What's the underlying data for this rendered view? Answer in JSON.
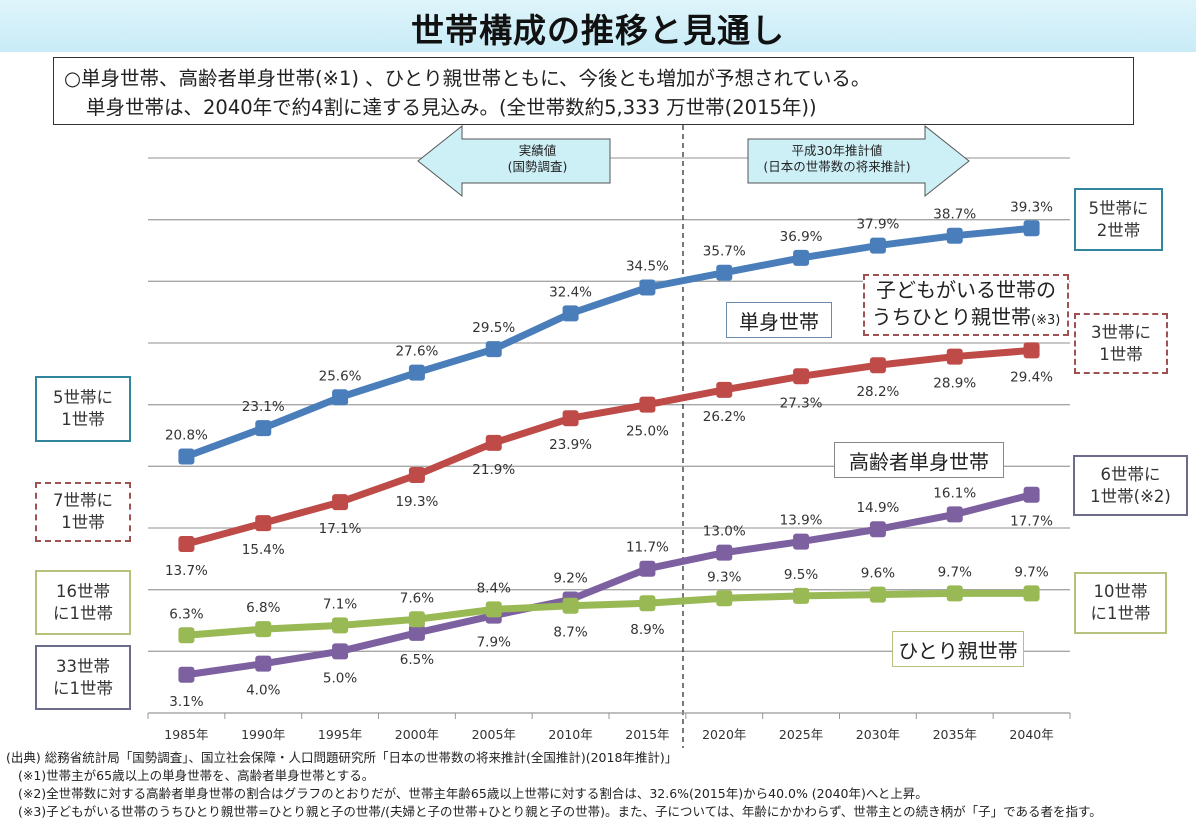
{
  "title": "世帯構成の推移と見通し",
  "summary": {
    "line1": "○単身世帯、高齢者単身世帯(※1) 、ひとり親世帯ともに、今後とも増加が予想されている。",
    "line2": "単身世帯は、2040年で約4割に達する見込み。(全世帯数約5,333 万世帯(2015年))"
  },
  "period_arrows": {
    "actual": {
      "line1": "実績値",
      "line2": "(国勢調査)"
    },
    "projection": {
      "line1": "平成30年推計値",
      "line2": "(日本の世帯数の将来推計)"
    }
  },
  "series_labels": {
    "single": "単身世帯",
    "single_parent_of_child": [
      "子どもがいる世帯の",
      "うちひとり親世帯",
      "(※3)"
    ],
    "elderly_single": "高齢者単身世帯",
    "single_parent": "ひとり親世帯"
  },
  "ratio_boxes": {
    "left": [
      {
        "line1": "5世帯に",
        "line2": "1世帯"
      },
      {
        "line1": "7世帯に",
        "line2": "1世帯"
      },
      {
        "line1": "16世帯",
        "line2": "に1世帯"
      },
      {
        "line1": "33世帯",
        "line2": "に1世帯"
      }
    ],
    "right": [
      {
        "line1": "5世帯に",
        "line2": "2世帯"
      },
      {
        "line1": "3世帯に",
        "line2": "1世帯"
      },
      {
        "line1": "6世帯に",
        "line2": "1世帯(※2)"
      },
      {
        "line1": "10世帯",
        "line2": "に1世帯"
      }
    ]
  },
  "colors": {
    "single": "#4a7ebb",
    "single_parent_of_child": "#be4b48",
    "elderly_single": "#7d60a0",
    "single_parent": "#98b954",
    "grid": "#a6a6a6",
    "arrow_fill": "#ccf0f6",
    "box_blue": "#31859c",
    "box_red_dashed": "#a05252",
    "box_purple": "#6b6b8c",
    "box_green": "#b4c27c"
  },
  "footnotes": [
    "(出典) 総務省統計局「国勢調査」、国立社会保障・人口問題研究所「日本の世帯数の将来推計(全国推計)(2018年推計)」",
    "(※1)世帯主が65歳以上の単身世帯を、高齢者単身世帯とする。",
    "(※2)全世帯数に対する高齢者単身世帯の割合はグラフのとおりだが、世帯主年齢65歳以上世帯に対する割合は、32.6%(2015年)から40.0% (2040年)へと上昇。",
    "(※3)子どもがいる世帯のうちひとり親世帯=ひとり親と子の世帯/(夫婦と子の世帯+ひとり親と子の世帯)。また、子については、年齢にかかわらず、世帯主との続き柄が「子」である者を指す。"
  ],
  "chart_data": {
    "type": "line",
    "title": "世帯構成の推移と見通し",
    "xlabel": "",
    "ylabel": "",
    "categories": [
      "1985年",
      "1990年",
      "1995年",
      "2000年",
      "2005年",
      "2010年",
      "2015年",
      "2020年",
      "2025年",
      "2030年",
      "2035年",
      "2040年"
    ],
    "ylim": [
      0,
      45
    ],
    "grid": true,
    "grid_step": 5,
    "projection_divider_after": "2015年",
    "series": [
      {
        "key": "single",
        "name": "単身世帯",
        "values": [
          20.8,
          23.1,
          25.6,
          27.6,
          29.5,
          32.4,
          34.5,
          35.7,
          36.9,
          37.9,
          38.7,
          39.3
        ],
        "labels": [
          "20.8%",
          "23.1%",
          "25.6%",
          "27.6%",
          "29.5%",
          "32.4%",
          "34.5%",
          "35.7%",
          "36.9%",
          "37.9%",
          "38.7%",
          "39.3%"
        ],
        "label_pos": [
          "above",
          "above",
          "above",
          "above",
          "above",
          "above",
          "above",
          "above",
          "above",
          "above",
          "above",
          "above"
        ]
      },
      {
        "key": "single_parent_of_child",
        "name": "子どもがいる世帯のうちひとり親世帯",
        "values": [
          13.7,
          15.4,
          17.1,
          19.3,
          21.9,
          23.9,
          25.0,
          26.2,
          27.3,
          28.2,
          28.9,
          29.4
        ],
        "labels": [
          "13.7%",
          "15.4%",
          "17.1%",
          "19.3%",
          "21.9%",
          "23.9%",
          "25.0%",
          "26.2%",
          "27.3%",
          "28.2%",
          "28.9%",
          "29.4%"
        ],
        "label_pos": [
          "below",
          "below",
          "below",
          "below",
          "below",
          "below",
          "below",
          "below",
          "below",
          "below",
          "below",
          "below"
        ]
      },
      {
        "key": "elderly_single",
        "name": "高齢者単身世帯",
        "values": [
          3.1,
          4.0,
          5.0,
          6.5,
          7.9,
          9.2,
          11.7,
          13.0,
          13.9,
          14.9,
          16.1,
          17.7
        ],
        "labels": [
          "3.1%",
          "4.0%",
          "5.0%",
          "6.5%",
          "7.9%",
          "9.2%",
          "11.7%",
          "13.0%",
          "13.9%",
          "14.9%",
          "16.1%",
          "17.7%"
        ],
        "label_pos": [
          "below",
          "below",
          "below",
          "below",
          "below",
          "above",
          "above",
          "above",
          "above",
          "above",
          "above",
          "below"
        ]
      },
      {
        "key": "single_parent",
        "name": "ひとり親世帯",
        "values": [
          6.3,
          6.8,
          7.1,
          7.6,
          8.4,
          8.7,
          8.9,
          9.3,
          9.5,
          9.6,
          9.7,
          9.7
        ],
        "labels": [
          "6.3%",
          "6.8%",
          "7.1%",
          "7.6%",
          "8.4%",
          "8.7%",
          "8.9%",
          "9.3%",
          "9.5%",
          "9.6%",
          "9.7%",
          "9.7%"
        ],
        "label_pos": [
          "above",
          "above",
          "above",
          "above",
          "above",
          "below",
          "below",
          "above",
          "above",
          "above",
          "above",
          "above"
        ]
      }
    ]
  }
}
